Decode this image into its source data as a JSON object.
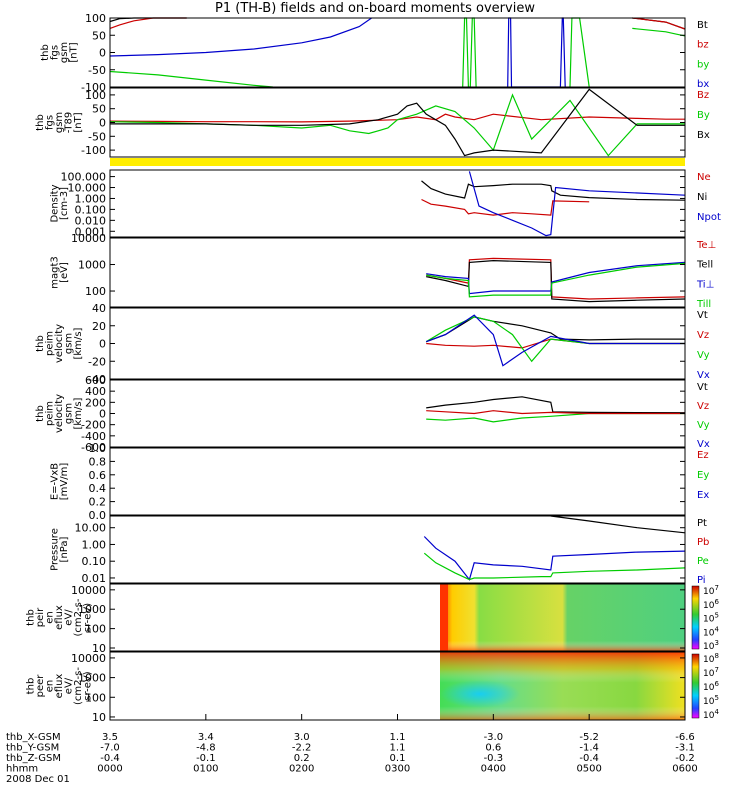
{
  "title": "P1 (TH-B) fields and on-board moments overview",
  "chart_data": [
    {
      "type": "line",
      "ylabel": [
        "thb",
        "fgs",
        "gsm",
        "[nT]"
      ],
      "ylim": [
        -100,
        100
      ],
      "yticks": [
        "100",
        "50",
        "0",
        "-50",
        "-100"
      ],
      "legend": [
        {
          "label": "Bt",
          "color": "#000000"
        },
        {
          "label": "bz",
          "color": "#cc0000"
        },
        {
          "label": "by",
          "color": "#00cc00"
        },
        {
          "label": "bx",
          "color": "#0000cc"
        }
      ],
      "series": [
        {
          "color": "#000000",
          "x": [
            0,
            0.1,
            0.25,
            0.5,
            0.8
          ],
          "y": [
            90,
            98,
            100,
            100,
            100
          ]
        },
        {
          "color": "#cc0000",
          "x": [
            0,
            0.1,
            0.25,
            0.45,
            0.8
          ],
          "y": [
            70,
            80,
            92,
            100,
            100
          ]
        },
        {
          "color": "#00cc00",
          "x": [
            0,
            0.5,
            1.0,
            1.5,
            1.7
          ],
          "y": [
            -55,
            -65,
            -80,
            -95,
            -100
          ]
        },
        {
          "color": "#0000cc",
          "x": [
            0,
            0.5,
            1.0,
            1.5,
            2.0,
            2.3,
            2.6,
            2.73
          ],
          "y": [
            -10,
            -6,
            0,
            10,
            28,
            45,
            75,
            100
          ]
        },
        {
          "color": "#00cc00",
          "x": [
            3.68,
            3.7,
            3.72,
            3.74,
            3.76,
            3.78,
            3.8,
            3.82
          ],
          "y": [
            -100,
            100,
            100,
            -100,
            -100,
            100,
            100,
            -100
          ]
        },
        {
          "color": "#0000cc",
          "x": [
            4.15,
            4.16,
            4.18,
            4.19,
            4.7,
            4.72,
            4.73,
            4.75
          ],
          "y": [
            -100,
            100,
            100,
            -100,
            -100,
            100,
            100,
            -100
          ]
        },
        {
          "color": "#00cc00",
          "x": [
            4.8,
            4.82,
            4.9,
            5.0
          ],
          "y": [
            -100,
            100,
            100,
            -100
          ]
        },
        {
          "color": "#000000",
          "x": [
            5.45,
            5.8,
            5.9,
            6.0
          ],
          "y": [
            100,
            88,
            78,
            68
          ]
        },
        {
          "color": "#cc0000",
          "x": [
            5.45,
            5.8,
            5.9,
            6.0
          ],
          "y": [
            100,
            88,
            78,
            68
          ]
        },
        {
          "color": "#00cc00",
          "x": [
            5.45,
            5.8,
            5.9,
            6.0
          ],
          "y": [
            70,
            60,
            54,
            48
          ]
        }
      ]
    },
    {
      "type": "line",
      "ylabel": [
        "thb",
        "fgs",
        "gsm",
        "-T89",
        "[nT]"
      ],
      "ylim": [
        -125,
        125
      ],
      "yticks": [
        "100",
        "50",
        "0",
        "-50",
        "-100"
      ],
      "legend": [
        {
          "label": "Bz",
          "color": "#cc0000"
        },
        {
          "label": "By",
          "color": "#00cc00"
        },
        {
          "label": "Bx",
          "color": "#000000"
        }
      ],
      "series": [
        {
          "color": "#cc0000",
          "x": [
            0,
            0.5,
            1.0,
            1.5,
            2.0,
            2.5,
            3.0,
            3.2,
            3.4,
            3.5,
            3.6,
            3.8,
            4.0,
            4.5,
            5.0,
            5.5,
            5.8,
            6.0
          ],
          "y": [
            5,
            4,
            3,
            3,
            2,
            5,
            10,
            20,
            10,
            30,
            20,
            10,
            30,
            10,
            20,
            15,
            12,
            12
          ]
        },
        {
          "color": "#00cc00",
          "x": [
            0,
            0.5,
            1.0,
            1.5,
            2.0,
            2.3,
            2.5,
            2.7,
            2.9,
            3.0,
            3.2,
            3.4,
            3.6,
            3.8,
            4.0,
            4.2,
            4.4,
            4.8,
            5.2,
            5.5,
            5.8,
            6.0
          ],
          "y": [
            3,
            0,
            -5,
            -10,
            -20,
            -10,
            -30,
            -40,
            -20,
            10,
            30,
            60,
            40,
            -20,
            -100,
            100,
            -60,
            80,
            -120,
            -5,
            -5,
            -5
          ]
        },
        {
          "color": "#000000",
          "x": [
            0,
            0.5,
            1.0,
            1.5,
            2.0,
            2.5,
            2.8,
            3.0,
            3.1,
            3.2,
            3.3,
            3.5,
            3.6,
            3.7,
            3.8,
            4.0,
            4.5,
            5.0,
            5.5,
            5.8,
            6.0
          ],
          "y": [
            -5,
            -5,
            -5,
            -10,
            -10,
            -5,
            10,
            30,
            60,
            70,
            30,
            -10,
            -60,
            -120,
            -110,
            -100,
            -110,
            120,
            -10,
            -10,
            -10
          ]
        }
      ]
    },
    {
      "type": "line",
      "ylabel": [
        "Density",
        "[cm-3]"
      ],
      "ylog": true,
      "ylim": [
        0.0003,
        400
      ],
      "yticks": [
        "100.000",
        "10.000",
        "1.000",
        "0.100",
        "0.010",
        "0.001"
      ],
      "legend": [
        {
          "label": "Ne",
          "color": "#cc0000"
        },
        {
          "label": "Ni",
          "color": "#000000"
        },
        {
          "label": "Npot",
          "color": "#0000cc"
        }
      ],
      "series": [
        {
          "color": "#000000",
          "x": [
            3.25,
            3.35,
            3.5,
            3.7,
            3.74,
            3.8,
            4.0,
            4.2,
            4.5,
            4.6,
            4.61,
            4.7,
            5.0,
            5.5,
            6.0
          ],
          "y": [
            40,
            8,
            2.5,
            1.1,
            20,
            12,
            15,
            20,
            20,
            15,
            5,
            2,
            1.2,
            0.8,
            0.7
          ]
        },
        {
          "color": "#cc0000",
          "x": [
            3.25,
            3.35,
            3.5,
            3.7,
            3.74,
            3.8,
            4.0,
            4.2,
            4.4,
            4.6,
            4.62,
            5.0
          ],
          "y": [
            0.8,
            0.3,
            0.2,
            0.1,
            0.04,
            0.05,
            0.03,
            0.05,
            0.04,
            0.03,
            0.6,
            0.5
          ]
        },
        {
          "color": "#0000cc",
          "x": [
            3.75,
            3.85,
            4.0,
            4.2,
            4.4,
            4.55,
            4.6,
            4.65,
            5.0,
            6.0
          ],
          "y": [
            300,
            0.2,
            0.05,
            0.01,
            0.002,
            0.0004,
            0.0005,
            10,
            5,
            2
          ]
        }
      ]
    },
    {
      "type": "line",
      "ylabel": [
        "magt3",
        "[eV]"
      ],
      "ylog": true,
      "ylim": [
        25,
        10000
      ],
      "yticks": [
        "10000",
        "1000",
        "100"
      ],
      "legend": [
        {
          "label": "Te⊥",
          "color": "#cc0000"
        },
        {
          "label": "Tell",
          "color": "#000000"
        },
        {
          "label": "Ti⊥",
          "color": "#0000cc"
        },
        {
          "label": "Till",
          "color": "#00cc00"
        }
      ],
      "series": [
        {
          "color": "#cc0000",
          "x": [
            3.3,
            3.5,
            3.74,
            3.75,
            4.0,
            4.6,
            4.61,
            5.0,
            5.5,
            6.0
          ],
          "y": [
            400,
            300,
            200,
            1500,
            1700,
            1500,
            60,
            50,
            55,
            60
          ]
        },
        {
          "color": "#000000",
          "x": [
            3.3,
            3.5,
            3.74,
            3.75,
            4.0,
            4.6,
            4.61,
            5.0,
            5.5,
            6.0
          ],
          "y": [
            350,
            250,
            150,
            1200,
            1400,
            1200,
            50,
            40,
            45,
            50
          ]
        },
        {
          "color": "#0000cc",
          "x": [
            3.3,
            3.5,
            3.74,
            3.75,
            4.0,
            4.6,
            4.61,
            5.0,
            5.5,
            6.0
          ],
          "y": [
            450,
            350,
            300,
            80,
            100,
            100,
            220,
            500,
            900,
            1200
          ]
        },
        {
          "color": "#00cc00",
          "x": [
            3.3,
            3.5,
            3.74,
            3.75,
            4.0,
            4.6,
            4.61,
            5.0,
            5.5,
            6.0
          ],
          "y": [
            400,
            300,
            250,
            60,
            70,
            70,
            200,
            400,
            800,
            1100
          ]
        }
      ]
    },
    {
      "type": "line",
      "ylabel": [
        "thb",
        "peim",
        "velocity",
        "gsm",
        "[km/s]"
      ],
      "ylim": [
        -40,
        40
      ],
      "yticks": [
        "40",
        "20",
        "0",
        "-20",
        "-40"
      ],
      "legend": [
        {
          "label": "Vt",
          "color": "#000000"
        },
        {
          "label": "Vz",
          "color": "#cc0000"
        },
        {
          "label": "Vy",
          "color": "#00cc00"
        },
        {
          "label": "Vx",
          "color": "#0000cc"
        }
      ],
      "series": [
        {
          "color": "#000000",
          "x": [
            3.3,
            3.5,
            3.8,
            4.0,
            4.3,
            4.6,
            4.7,
            5.0,
            5.5,
            6.0
          ],
          "y": [
            2,
            10,
            30,
            25,
            20,
            12,
            5,
            4,
            5,
            5
          ]
        },
        {
          "color": "#cc0000",
          "x": [
            3.3,
            3.5,
            3.8,
            4.0,
            4.3,
            4.6,
            5.0,
            6.0
          ],
          "y": [
            0,
            -2,
            -3,
            -2,
            -5,
            5,
            0,
            0
          ]
        },
        {
          "color": "#00cc00",
          "x": [
            3.3,
            3.5,
            3.8,
            4.0,
            4.2,
            4.4,
            4.6,
            5.0,
            6.0
          ],
          "y": [
            2,
            15,
            30,
            25,
            10,
            -20,
            5,
            0,
            0
          ]
        },
        {
          "color": "#0000cc",
          "x": [
            3.3,
            3.5,
            3.8,
            4.0,
            4.1,
            4.3,
            4.6,
            5.0,
            6.0
          ],
          "y": [
            2,
            10,
            32,
            10,
            -25,
            -10,
            8,
            0,
            0
          ]
        }
      ]
    },
    {
      "type": "line",
      "ylabel": [
        "thb",
        "peim",
        "velocity",
        "gsm",
        "[km/s]"
      ],
      "ylim": [
        -600,
        600
      ],
      "yticks": [
        "600",
        "400",
        "200",
        "0",
        "-200",
        "-400",
        "-600"
      ],
      "legend": [
        {
          "label": "Vt",
          "color": "#000000"
        },
        {
          "label": "Vz",
          "color": "#cc0000"
        },
        {
          "label": "Vy",
          "color": "#00cc00"
        },
        {
          "label": "Vx",
          "color": "#0000cc"
        }
      ],
      "series": [
        {
          "color": "#00cc00",
          "x": [
            3.3,
            3.5,
            3.8,
            4.0,
            4.3,
            4.6,
            5.0,
            6.0
          ],
          "y": [
            -100,
            -120,
            -80,
            -150,
            -80,
            -50,
            0,
            0
          ]
        },
        {
          "color": "#000000",
          "x": [
            3.3,
            3.5,
            3.8,
            4.0,
            4.3,
            4.6,
            4.62,
            5.0,
            6.0
          ],
          "y": [
            100,
            150,
            200,
            250,
            300,
            200,
            30,
            20,
            15
          ]
        },
        {
          "color": "#cc0000",
          "x": [
            3.3,
            3.5,
            3.8,
            4.0,
            4.3,
            4.6,
            5.0,
            6.0
          ],
          "y": [
            50,
            30,
            0,
            50,
            0,
            20,
            0,
            0
          ]
        }
      ]
    },
    {
      "type": "line",
      "ylabel": [
        "E=-VxB",
        "[mV/m]"
      ],
      "ylim": [
        0,
        1
      ],
      "yticks": [
        "1.0",
        "0.8",
        "0.6",
        "0.4",
        "0.2",
        "0.0"
      ],
      "legend": [
        {
          "label": "Ez",
          "color": "#cc0000"
        },
        {
          "label": "Ey",
          "color": "#00cc00"
        },
        {
          "label": "Ex",
          "color": "#0000cc"
        }
      ],
      "series": []
    },
    {
      "type": "line",
      "ylabel": [
        "Pressure",
        "[nPa]"
      ],
      "ylog": true,
      "ylim": [
        0.005,
        50
      ],
      "yticks": [
        "10.00",
        "1.00",
        "0.10",
        "0.01"
      ],
      "legend": [
        {
          "label": "Pt",
          "color": "#000000"
        },
        {
          "label": "Pb",
          "color": "#cc0000"
        },
        {
          "label": "Pe",
          "color": "#00cc00"
        },
        {
          "label": "Pi",
          "color": "#0000cc"
        }
      ],
      "series": [
        {
          "color": "#000000",
          "x": [
            4.6,
            5.0,
            5.5,
            6.0
          ],
          "y": [
            50,
            25,
            10,
            5
          ]
        },
        {
          "color": "#0000cc",
          "x": [
            3.28,
            3.4,
            3.6,
            3.75,
            3.8,
            4.0,
            4.3,
            4.6,
            4.62,
            5.0,
            5.5,
            6.0
          ],
          "y": [
            3,
            0.6,
            0.1,
            0.008,
            0.08,
            0.06,
            0.05,
            0.03,
            0.2,
            0.25,
            0.35,
            0.4
          ]
        },
        {
          "color": "#00cc00",
          "x": [
            3.28,
            3.4,
            3.6,
            3.75,
            3.8,
            4.0,
            4.5,
            4.6,
            4.62,
            5.0,
            5.5,
            6.0
          ],
          "y": [
            0.3,
            0.08,
            0.02,
            0.008,
            0.01,
            0.01,
            0.012,
            0.012,
            0.02,
            0.025,
            0.03,
            0.04
          ]
        }
      ]
    },
    {
      "type": "heatmap",
      "ylabel": [
        "thb",
        "peir",
        "en",
        "eflux",
        "eV/",
        "(cm2-s-",
        "sr-eV)"
      ],
      "ylog": true,
      "ylim": [
        7,
        20000
      ],
      "yticks": [
        "10000",
        "1000",
        "100",
        "10"
      ],
      "colorbar": {
        "labels": [
          "10^7",
          "10^6",
          "10^5",
          "10^4",
          "10^3"
        ],
        "stops": [
          "#cc0000",
          "#ffd400",
          "#33cc33",
          "#00d0ff",
          "#2244ff",
          "#ff00ff"
        ]
      }
    },
    {
      "type": "heatmap",
      "ylabel": [
        "thb",
        "peer",
        "en",
        "eflux",
        "eV/",
        "(cm2-s-",
        "sr-eV)"
      ],
      "ylog": true,
      "ylim": [
        7,
        20000
      ],
      "yticks": [
        "10000",
        "1000",
        "100",
        "10"
      ],
      "colorbar": {
        "labels": [
          "10^8",
          "10^7",
          "10^6",
          "10^5",
          "10^4"
        ],
        "stops": [
          "#cc0000",
          "#ffd400",
          "#33cc33",
          "#00d0ff",
          "#2244ff",
          "#ff00ff"
        ]
      }
    }
  ],
  "x_axis": {
    "row_labels": [
      "thb_X-GSM",
      "thb_Y-GSM",
      "thb_Z-GSM",
      "hhmm",
      "2008 Dec 01"
    ],
    "ticks": [
      {
        "x": 0,
        "X": "3.5",
        "Y": "-7.0",
        "Z": "-0.4",
        "hhmm": "0000"
      },
      {
        "x": 1,
        "X": "3.4",
        "Y": "-4.8",
        "Z": "-0.1",
        "hhmm": "0100"
      },
      {
        "x": 2,
        "X": "3.0",
        "Y": "-2.2",
        "Z": "0.2",
        "hhmm": "0200"
      },
      {
        "x": 3,
        "X": "1.1",
        "Y": "1.1",
        "Z": "0.1",
        "hhmm": "0300"
      },
      {
        "x": 4,
        "X": "-3.0",
        "Y": "0.6",
        "Z": "-0.3",
        "hhmm": "0400"
      },
      {
        "x": 5,
        "X": "-5.2",
        "Y": "-1.4",
        "Z": "-0.4",
        "hhmm": "0500"
      },
      {
        "x": 6,
        "X": "-6.6",
        "Y": "-3.1",
        "Z": "-0.2",
        "hhmm": "0600"
      }
    ]
  }
}
